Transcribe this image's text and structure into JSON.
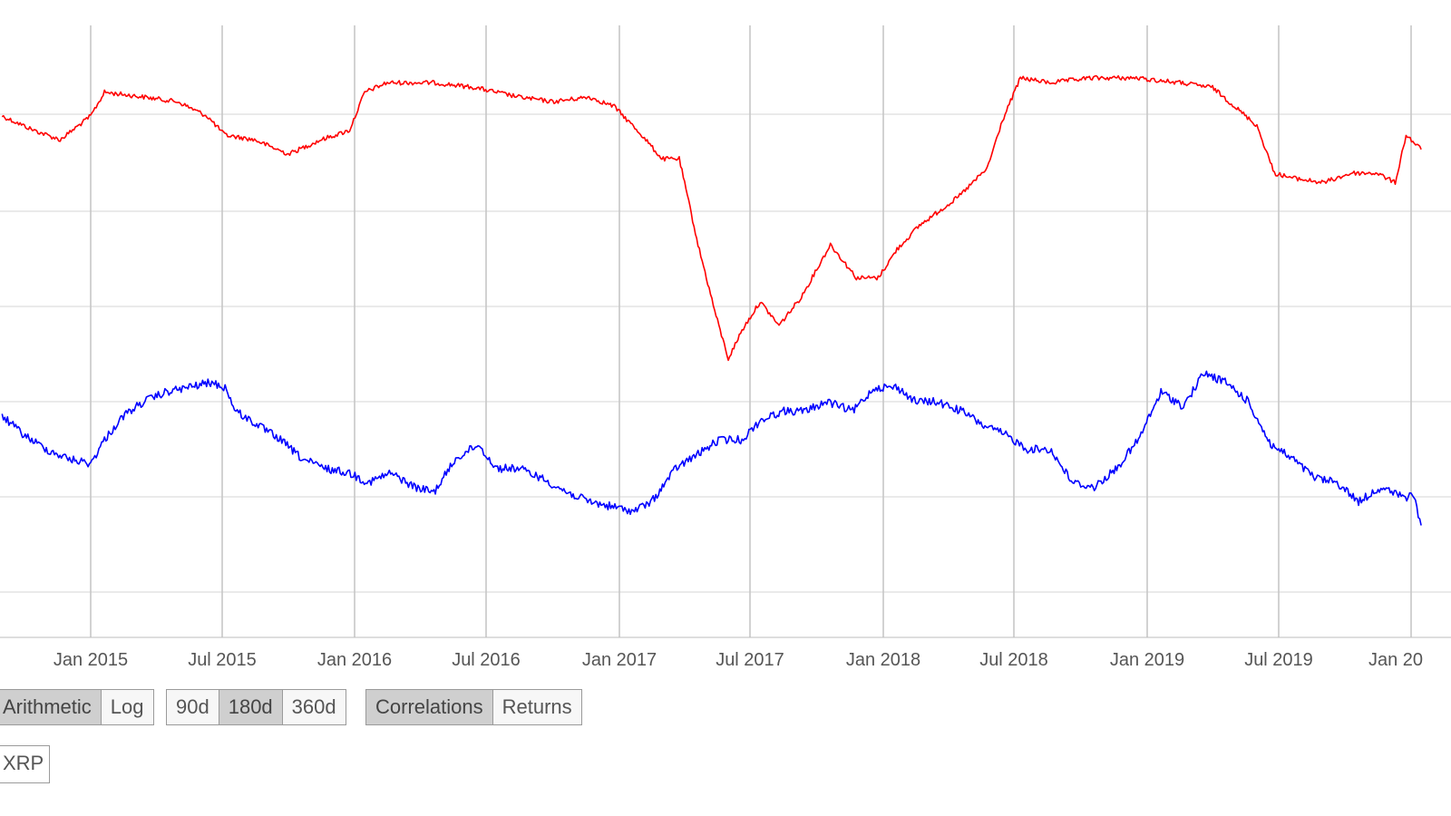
{
  "chart_data": {
    "type": "line",
    "title": "",
    "xlabel": "",
    "ylabel": "",
    "x_ticks": [
      "Jan 2015",
      "Jul 2015",
      "Jan 2016",
      "Jul 2016",
      "Jan 2017",
      "Jul 2017",
      "Jan 2018",
      "Jul 2018",
      "Jan 2019",
      "Jul 2019",
      "Jan 20"
    ],
    "xlim": [
      "2014-09-01",
      "2020-01-15"
    ],
    "ylim": [
      0,
      1
    ],
    "grid": true,
    "colors": {
      "red_series": "#ff0000",
      "blue_series": "#0000ff",
      "grid": "#cccccc"
    },
    "series": [
      {
        "color": "#ff0000",
        "x": [
          "2014-09-01",
          "2014-10-15",
          "2014-11-20",
          "2015-01-01",
          "2015-01-20",
          "2015-03-15",
          "2015-05-01",
          "2015-06-10",
          "2015-07-05",
          "2015-08-15",
          "2015-10-01",
          "2015-11-15",
          "2015-12-25",
          "2016-01-15",
          "2016-02-15",
          "2016-04-20",
          "2016-06-15",
          "2016-08-15",
          "2016-10-01",
          "2016-11-20",
          "2016-12-25",
          "2017-02-01",
          "2017-03-01",
          "2017-03-25",
          "2017-04-20",
          "2017-05-15",
          "2017-06-01",
          "2017-06-20",
          "2017-07-15",
          "2017-08-10",
          "2017-09-10",
          "2017-10-20",
          "2017-11-25",
          "2017-12-25",
          "2018-01-20",
          "2018-02-20",
          "2018-04-15",
          "2018-05-25",
          "2018-06-15",
          "2018-07-10",
          "2018-08-20",
          "2018-10-15",
          "2018-12-15",
          "2019-02-15",
          "2019-04-01",
          "2019-06-01",
          "2019-06-25",
          "2019-07-20",
          "2019-09-01",
          "2019-10-10",
          "2019-11-15",
          "2019-12-10",
          "2019-12-25",
          "2020-01-15"
        ],
        "values": [
          0.8,
          0.77,
          0.75,
          0.8,
          0.85,
          0.84,
          0.83,
          0.8,
          0.76,
          0.75,
          0.72,
          0.75,
          0.77,
          0.85,
          0.87,
          0.87,
          0.86,
          0.84,
          0.83,
          0.84,
          0.82,
          0.76,
          0.71,
          0.71,
          0.53,
          0.38,
          0.29,
          0.35,
          0.41,
          0.36,
          0.42,
          0.53,
          0.46,
          0.46,
          0.52,
          0.57,
          0.63,
          0.69,
          0.79,
          0.88,
          0.87,
          0.88,
          0.88,
          0.87,
          0.86,
          0.78,
          0.68,
          0.67,
          0.66,
          0.68,
          0.68,
          0.66,
          0.76,
          0.73
        ]
      },
      {
        "color": "#0000ff",
        "x": [
          "2014-09-01",
          "2014-10-01",
          "2014-11-01",
          "2014-12-01",
          "2015-01-01",
          "2015-01-20",
          "2015-02-15",
          "2015-03-15",
          "2015-04-15",
          "2015-05-15",
          "2015-06-15",
          "2015-07-05",
          "2015-07-20",
          "2015-08-20",
          "2015-09-20",
          "2015-10-20",
          "2015-11-20",
          "2015-12-25",
          "2016-01-20",
          "2016-02-20",
          "2016-03-25",
          "2016-04-20",
          "2016-05-20",
          "2016-06-20",
          "2016-07-15",
          "2016-08-15",
          "2016-09-15",
          "2016-10-20",
          "2016-11-20",
          "2016-12-20",
          "2017-01-20",
          "2017-02-15",
          "2017-03-20",
          "2017-04-20",
          "2017-05-20",
          "2017-06-20",
          "2017-07-15",
          "2017-08-15",
          "2017-09-15",
          "2017-10-15",
          "2017-11-20",
          "2017-12-20",
          "2018-01-20",
          "2018-02-15",
          "2018-03-15",
          "2018-04-20",
          "2018-05-20",
          "2018-06-20",
          "2018-07-20",
          "2018-08-20",
          "2018-09-20",
          "2018-10-20",
          "2018-11-20",
          "2018-12-20",
          "2019-01-20",
          "2019-02-20",
          "2019-03-20",
          "2019-04-20",
          "2019-05-20",
          "2019-06-20",
          "2019-07-20",
          "2019-08-20",
          "2019-09-20",
          "2019-10-20",
          "2019-11-20",
          "2019-12-20",
          "2020-01-05",
          "2020-01-15"
        ],
        "values": [
          0.17,
          0.13,
          0.1,
          0.08,
          0.07,
          0.12,
          0.17,
          0.2,
          0.22,
          0.23,
          0.24,
          0.23,
          0.18,
          0.15,
          0.12,
          0.08,
          0.06,
          0.05,
          0.03,
          0.05,
          0.02,
          0.01,
          0.08,
          0.11,
          0.06,
          0.06,
          0.04,
          0.01,
          -0.01,
          -0.02,
          -0.03,
          -0.01,
          0.06,
          0.09,
          0.12,
          0.12,
          0.16,
          0.18,
          0.18,
          0.2,
          0.18,
          0.23,
          0.23,
          0.2,
          0.2,
          0.18,
          0.15,
          0.13,
          0.1,
          0.1,
          0.03,
          0.02,
          0.06,
          0.12,
          0.22,
          0.19,
          0.26,
          0.24,
          0.2,
          0.11,
          0.08,
          0.04,
          0.03,
          -0.01,
          0.02,
          0.0,
          0.0,
          -0.06
        ]
      }
    ]
  },
  "controls": {
    "scale": {
      "arithmetic": "Arithmetic",
      "log": "Log"
    },
    "window": {
      "d90": "90d",
      "d180": "180d",
      "d360": "360d"
    },
    "mode": {
      "correlations": "Correlations",
      "returns": "Returns"
    },
    "asset": {
      "label": "XRP"
    }
  }
}
